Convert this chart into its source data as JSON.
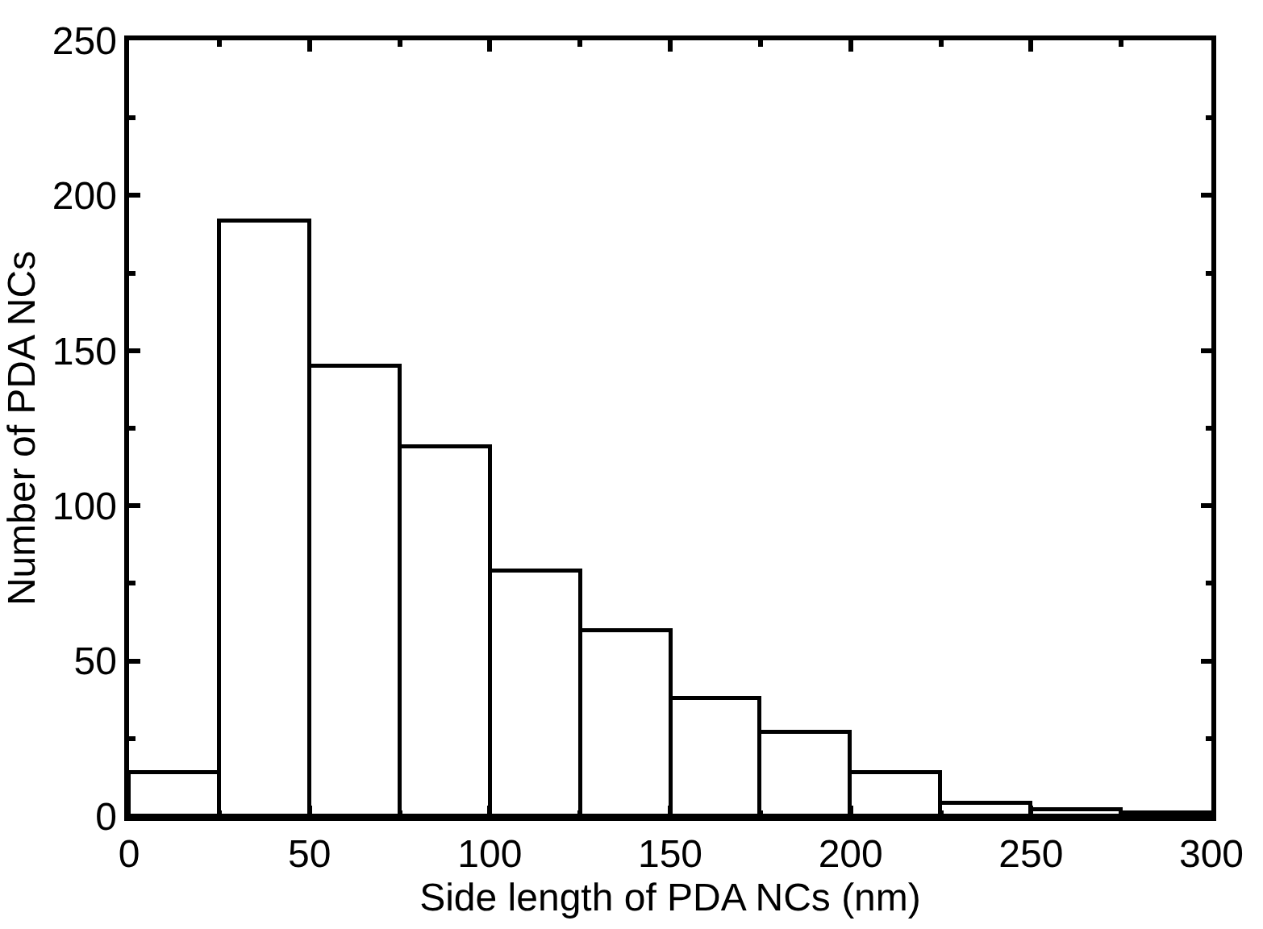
{
  "chart_data": {
    "type": "histogram",
    "xlabel": "Side length of PDA NCs (nm)",
    "ylabel": "Number of PDA NCs",
    "bins": [
      0,
      25,
      50,
      75,
      100,
      125,
      150,
      175,
      200,
      225,
      250,
      275,
      300
    ],
    "values": [
      14,
      192,
      145,
      119,
      79,
      60,
      38,
      27,
      14,
      4,
      2,
      1
    ],
    "color": "#ffffff",
    "xlim": [
      0,
      300
    ],
    "xticks": [
      0,
      50,
      100,
      150,
      200,
      250,
      300
    ],
    "ylim": [
      0,
      250
    ],
    "yticks": [
      0,
      50,
      100,
      150,
      200,
      250
    ]
  }
}
